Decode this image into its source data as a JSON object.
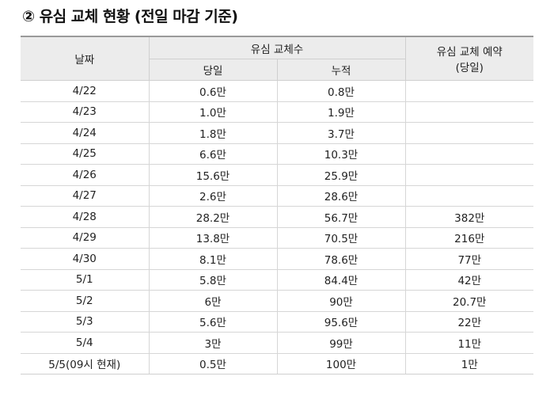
{
  "heading": "② 유심 교체 현황 (전일 마감 기준)",
  "header": {
    "date": "날짜",
    "replace_group": "유심 교체수",
    "daily": "당일",
    "cumulative": "누적",
    "reservation_line1": "유심 교체 예약",
    "reservation_line2": "(당일)"
  },
  "rows": [
    {
      "date": "4/22",
      "daily": "0.6만",
      "cumulative": "0.8만",
      "reservation": ""
    },
    {
      "date": "4/23",
      "daily": "1.0만",
      "cumulative": "1.9만",
      "reservation": ""
    },
    {
      "date": "4/24",
      "daily": "1.8만",
      "cumulative": "3.7만",
      "reservation": ""
    },
    {
      "date": "4/25",
      "daily": "6.6만",
      "cumulative": "10.3만",
      "reservation": ""
    },
    {
      "date": "4/26",
      "daily": "15.6만",
      "cumulative": "25.9만",
      "reservation": ""
    },
    {
      "date": "4/27",
      "daily": "2.6만",
      "cumulative": "28.6만",
      "reservation": ""
    },
    {
      "date": "4/28",
      "daily": "28.2만",
      "cumulative": "56.7만",
      "reservation": "382만"
    },
    {
      "date": "4/29",
      "daily": "13.8만",
      "cumulative": "70.5만",
      "reservation": "216만"
    },
    {
      "date": "4/30",
      "daily": "8.1만",
      "cumulative": "78.6만",
      "reservation": "77만"
    },
    {
      "date": "5/1",
      "daily": "5.8만",
      "cumulative": "84.4만",
      "reservation": "42만"
    },
    {
      "date": "5/2",
      "daily": "6만",
      "cumulative": "90만",
      "reservation": "20.7만"
    },
    {
      "date": "5/3",
      "daily": "5.6만",
      "cumulative": "95.6만",
      "reservation": "22만"
    },
    {
      "date": "5/4",
      "daily": "3만",
      "cumulative": "99만",
      "reservation": "11만"
    },
    {
      "date": "5/5(09시 현재)",
      "daily": "0.5만",
      "cumulative": "100만",
      "reservation": "1만"
    }
  ]
}
